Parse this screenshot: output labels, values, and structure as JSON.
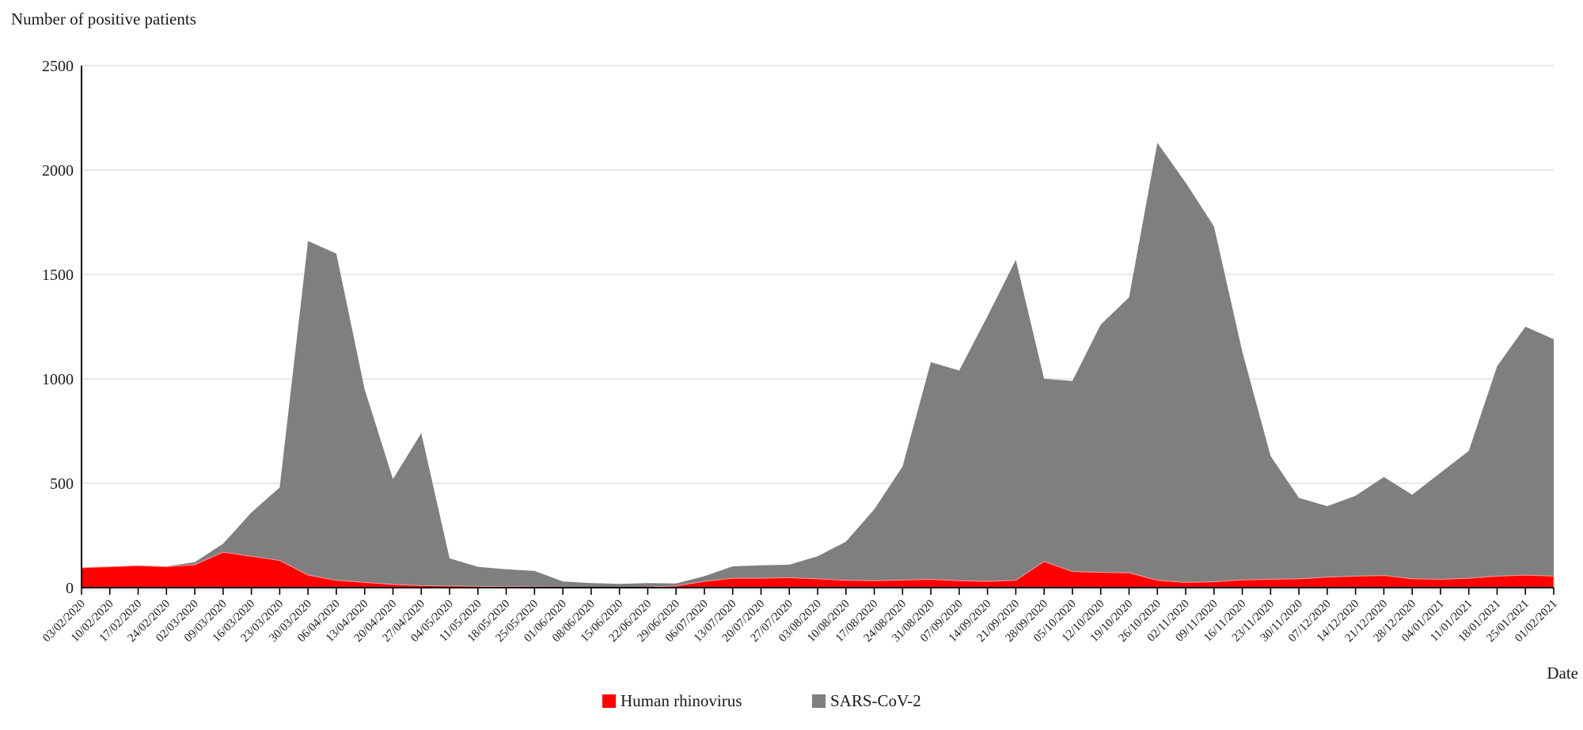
{
  "title": "Number of positive patients",
  "x_axis_label": "Date",
  "colors": {
    "rhinovirus": "#FE0000",
    "rhinovirus_edge": "#FF9999",
    "sars": "#7F7F7F",
    "gridline": "#D9D9D9",
    "axis": "#000000",
    "text": "#1A1A1A"
  },
  "y_axis": {
    "min": 0,
    "max": 2500,
    "tick_interval": 500,
    "ticks": [
      0,
      500,
      1000,
      1500,
      2000,
      2500
    ]
  },
  "legend": [
    {
      "label": "Human rhinovirus",
      "color": "#FE0000"
    },
    {
      "label": "SARS-CoV-2",
      "color": "#7F7F7F"
    }
  ],
  "chart_data": {
    "type": "area",
    "stacked": true,
    "title": "Number of positive patients",
    "xlabel": "Date",
    "ylabel": "Number of positive patients",
    "ylim": [
      0,
      2500
    ],
    "grid": true,
    "legend_position": "bottom",
    "x": [
      "03/02/2020",
      "10/02/2020",
      "17/02/2020",
      "24/02/2020",
      "02/03/2020",
      "09/03/2020",
      "16/03/2020",
      "23/03/2020",
      "30/03/2020",
      "06/04/2020",
      "13/04/2020",
      "20/04/2020",
      "27/04/2020",
      "04/05/2020",
      "11/05/2020",
      "18/05/2020",
      "25/05/2020",
      "01/06/2020",
      "08/06/2020",
      "15/06/2020",
      "22/06/2020",
      "29/06/2020",
      "06/07/2020",
      "13/07/2020",
      "20/07/2020",
      "27/07/2020",
      "03/08/2020",
      "10/08/2020",
      "17/08/2020",
      "24/08/2020",
      "31/08/2020",
      "07/09/2020",
      "14/09/2020",
      "21/09/2020",
      "28/09/2020",
      "05/10/2020",
      "12/10/2020",
      "19/10/2020",
      "26/10/2020",
      "02/11/2020",
      "09/11/2020",
      "16/11/2020",
      "23/11/2020",
      "30/11/2020",
      "07/12/2020",
      "14/12/2020",
      "21/12/2020",
      "28/12/2020",
      "04/01/2021",
      "11/01/2021",
      "18/01/2021",
      "25/01/2021",
      "01/02/2021"
    ],
    "series": [
      {
        "name": "Human rhinovirus",
        "color": "#FE0000",
        "values": [
          95,
          100,
          105,
          100,
          110,
          170,
          150,
          130,
          60,
          35,
          25,
          15,
          10,
          8,
          6,
          5,
          4,
          3,
          2,
          2,
          3,
          8,
          30,
          45,
          45,
          48,
          42,
          35,
          33,
          36,
          40,
          33,
          30,
          35,
          125,
          77,
          73,
          71,
          35,
          25,
          28,
          37,
          40,
          42,
          50,
          55,
          58,
          42,
          40,
          45,
          55,
          60,
          55
        ]
      },
      {
        "name": "SARS-CoV-2",
        "color": "#7F7F7F",
        "values": [
          0,
          0,
          0,
          2,
          12,
          40,
          210,
          350,
          1600,
          1565,
          925,
          505,
          730,
          132,
          94,
          83,
          76,
          27,
          20,
          16,
          19,
          12,
          25,
          57,
          62,
          62,
          108,
          185,
          342,
          544,
          1040,
          1007,
          1270,
          1535,
          875,
          913,
          1187,
          1319,
          2095,
          1915,
          1702,
          1093,
          590,
          388,
          340,
          385,
          472,
          403,
          510,
          610,
          1005,
          1190,
          1135
        ]
      }
    ]
  }
}
